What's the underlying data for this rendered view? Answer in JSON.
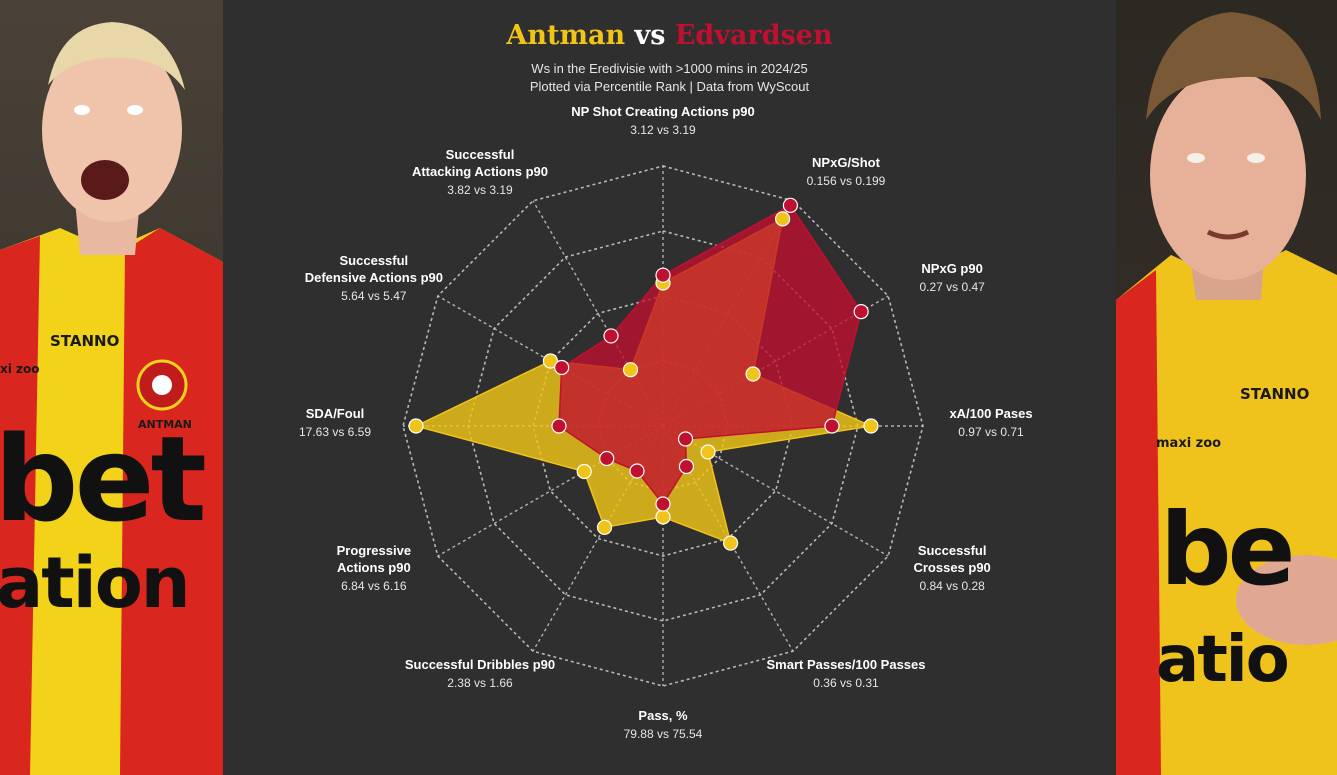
{
  "title": {
    "player1": "Antman",
    "vs": "vs",
    "player2": "Edvardsen"
  },
  "subtitle_line1": "Ws in the Eredivisie with >1000 mins in 2024/25",
  "subtitle_line2": "Plotted via Percentile Rank | Data from WyScout",
  "colors": {
    "player1": "#f0c419",
    "player2": "#c0102f",
    "background": "#2f2f2f",
    "grid": "#cfcfcf"
  },
  "left_photo": {
    "kit_sponsor": "STANNO",
    "name_on_shirt": "ANTMAN",
    "shirt_text_1": "bet",
    "shirt_text_2": "ation",
    "sleeve_text": "xi zoo"
  },
  "right_photo": {
    "kit_sponsor": "STANNO",
    "shirt_text_1": "be",
    "shirt_text_2": "atio",
    "sleeve_text": "maxi zoo"
  },
  "chart_data": {
    "type": "radar",
    "scale": "percentile rank",
    "rlim": [
      0,
      100
    ],
    "grid": true,
    "series": [
      {
        "name": "Antman",
        "color": "#f0c419",
        "values": [
          55,
          92,
          40,
          80,
          20,
          52,
          35,
          45,
          35,
          95,
          50,
          25
        ]
      },
      {
        "name": "Edvardsen",
        "color": "#c0102f",
        "values": [
          58,
          98,
          88,
          65,
          10,
          18,
          30,
          20,
          25,
          40,
          45,
          40
        ]
      }
    ],
    "metrics": [
      {
        "label": [
          "NP Shot Creating Actions p90"
        ],
        "values": "3.12 vs 3.19"
      },
      {
        "label": [
          "NPxG/Shot"
        ],
        "values": "0.156 vs 0.199"
      },
      {
        "label": [
          "NPxG p90"
        ],
        "values": "0.27 vs 0.47"
      },
      {
        "label": [
          "xA/100 Pases"
        ],
        "values": "0.97 vs 0.71"
      },
      {
        "label": [
          "Successful",
          "Crosses p90"
        ],
        "values": "0.84 vs 0.28"
      },
      {
        "label": [
          "Smart Passes/100 Passes"
        ],
        "values": "0.36 vs 0.31"
      },
      {
        "label": [
          "Pass, %"
        ],
        "values": "79.88 vs 75.54"
      },
      {
        "label": [
          "Successful Dribbles p90"
        ],
        "values": "2.38 vs 1.66"
      },
      {
        "label": [
          "Progressive",
          "Actions p90"
        ],
        "values": "6.84 vs 6.16"
      },
      {
        "label": [
          "SDA/Foul"
        ],
        "values": "17.63 vs 6.59"
      },
      {
        "label": [
          "Successful",
          "Defensive Actions p90"
        ],
        "values": "5.64 vs 5.47"
      },
      {
        "label": [
          "Successful",
          "Attacking Actions p90"
        ],
        "values": "3.82 vs 3.19"
      }
    ]
  }
}
